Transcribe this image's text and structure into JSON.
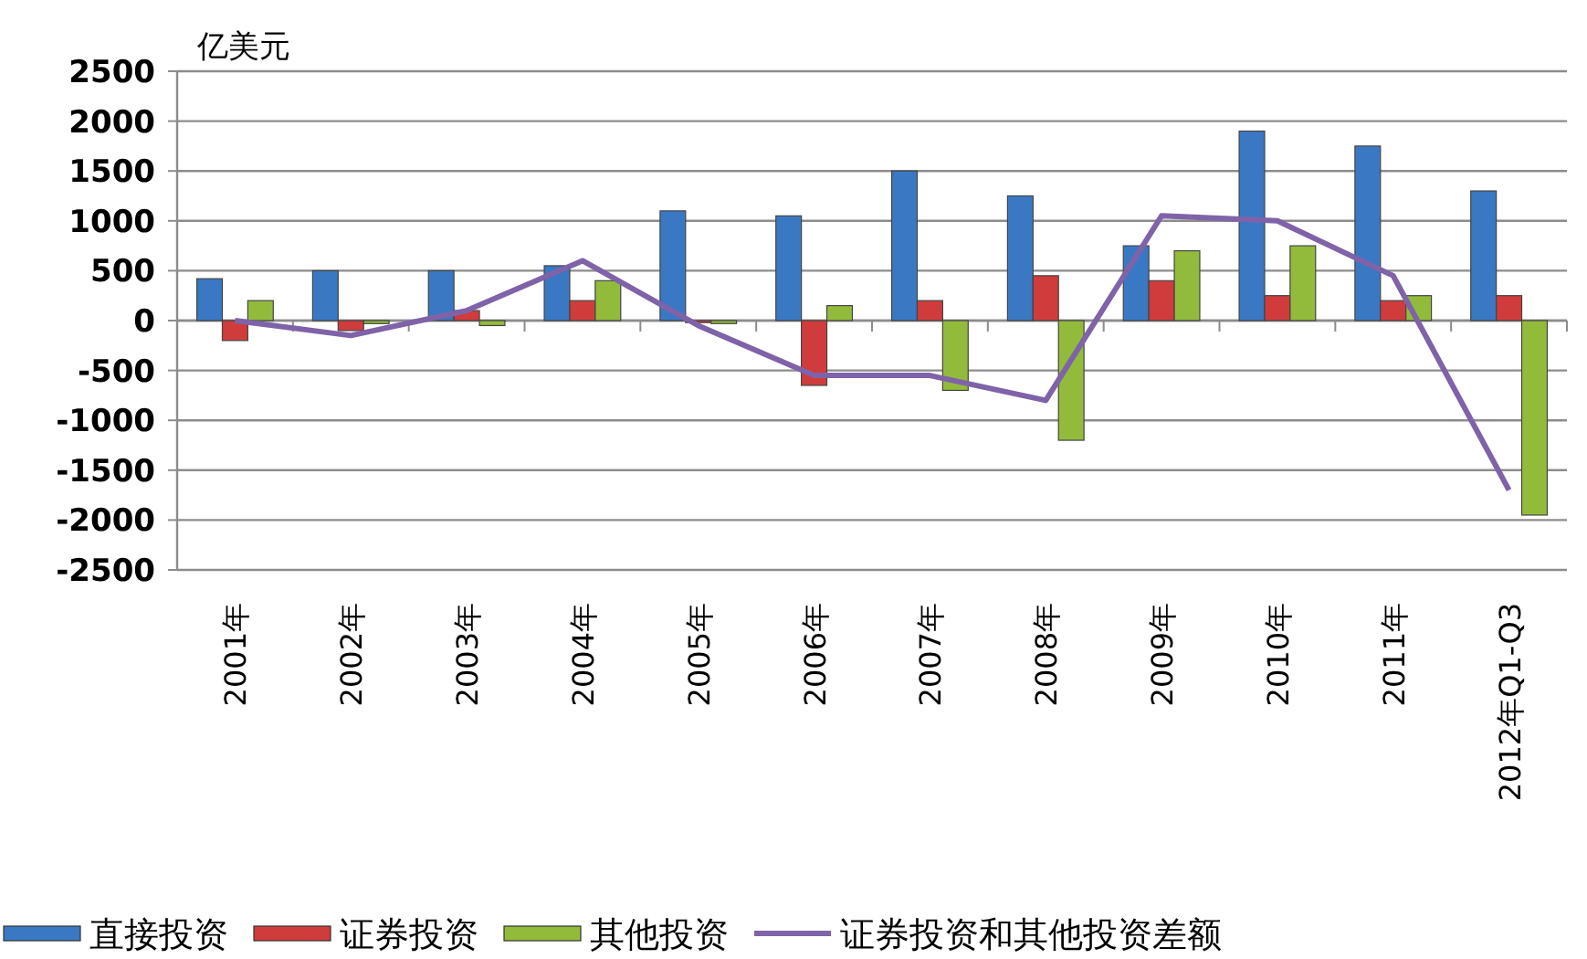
{
  "chart_data": {
    "type": "bar",
    "ylabel": "亿美元",
    "categories": [
      "2001年",
      "2002年",
      "2003年",
      "2004年",
      "2005年",
      "2006年",
      "2007年",
      "2008年",
      "2009年",
      "2010年",
      "2011年",
      "2012年Q1-Q3"
    ],
    "series": [
      {
        "name": "直接投资",
        "color": "#3a78c4",
        "values": [
          420,
          500,
          500,
          550,
          1100,
          1050,
          1500,
          1250,
          750,
          1900,
          1750,
          1300
        ]
      },
      {
        "name": "证券投资",
        "color": "#d03c3c",
        "values": [
          -200,
          -100,
          100,
          200,
          -20,
          -650,
          200,
          450,
          400,
          250,
          200,
          250
        ]
      },
      {
        "name": "其他投资",
        "color": "#92bb3c",
        "values": [
          200,
          -30,
          -50,
          400,
          -30,
          150,
          -700,
          -1200,
          700,
          750,
          250,
          -1950
        ]
      },
      {
        "name": "证券投资和其他投资差额",
        "type": "line",
        "color": "#7f63a8",
        "values": [
          0,
          -150,
          100,
          600,
          -50,
          -550,
          -550,
          -800,
          1050,
          1000,
          450,
          -1700
        ]
      }
    ],
    "ylim": [
      -2500,
      2500
    ],
    "yticks": [
      -2500,
      -2000,
      -1500,
      -1000,
      -500,
      0,
      500,
      1000,
      1500,
      2000,
      2500
    ],
    "grid": "y",
    "legend": "bottom"
  }
}
